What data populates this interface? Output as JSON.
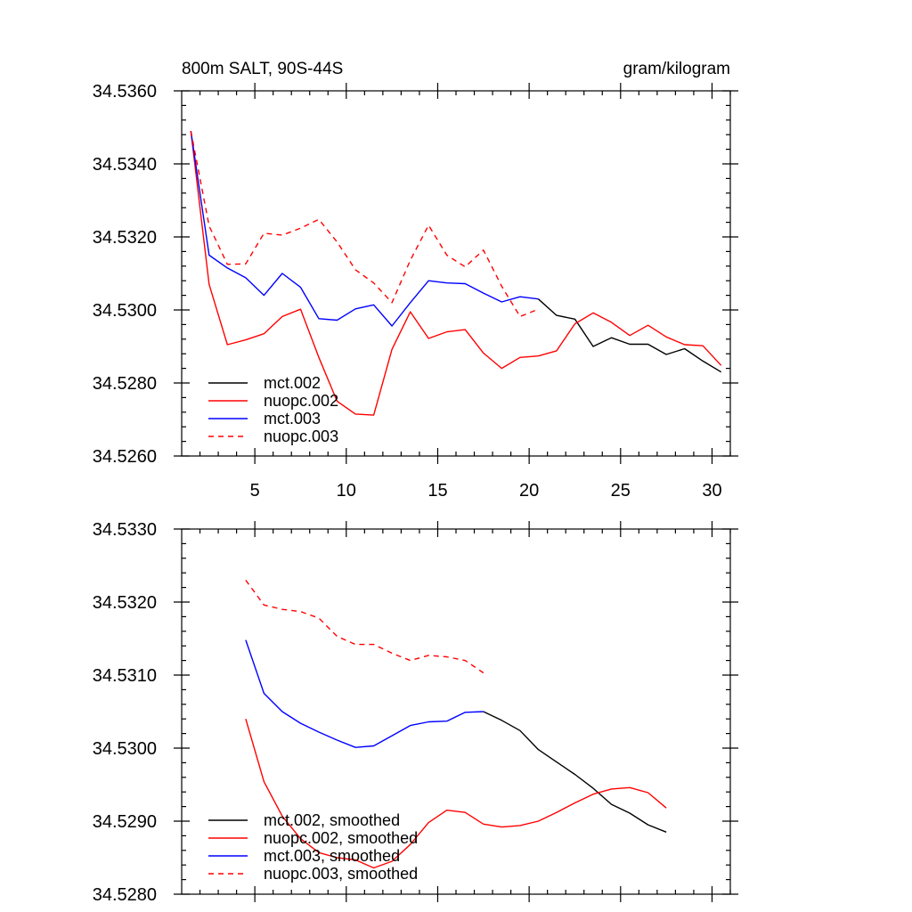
{
  "chart_data": [
    {
      "type": "line",
      "title": "800m SALT, 90S-44S",
      "units": "gram/kilogram",
      "xlim": [
        1,
        31
      ],
      "ylim": [
        34.526,
        34.536
      ],
      "xticks": [
        5,
        10,
        15,
        20,
        25,
        30
      ],
      "xtick_labels": [
        "5",
        "10",
        "15",
        "20",
        "25",
        "30"
      ],
      "yticks": [
        34.526,
        34.528,
        34.53,
        34.532,
        34.534,
        34.536
      ],
      "ytick_labels": [
        "34.5260",
        "34.5280",
        "34.5300",
        "34.5320",
        "34.5340",
        "34.5360"
      ],
      "legend_location": "lower-left",
      "series": [
        {
          "name": "mct.002",
          "color": "#000000",
          "dash": "solid",
          "x": [
            20.5,
            21.5,
            22.5,
            23.5,
            24.5,
            25.5,
            26.5,
            27.5,
            28.5,
            29.5,
            30.5
          ],
          "values": [
            34.5303,
            34.52985,
            34.52975,
            34.529,
            34.52924,
            34.52906,
            34.52906,
            34.52878,
            34.52894,
            34.5286,
            34.5283
          ]
        },
        {
          "name": "nuopc.002",
          "color": "#ff0000",
          "dash": "solid",
          "x": [
            1.5,
            2.5,
            3.5,
            4.5,
            5.5,
            6.5,
            7.5,
            8.5,
            9.5,
            10.5,
            11.5,
            12.5,
            13.5,
            14.5,
            15.5,
            16.5,
            17.5,
            18.5,
            19.5,
            20.5,
            21.5,
            22.5,
            23.5,
            24.5,
            25.5,
            26.5,
            27.5,
            28.5,
            29.5,
            30.5
          ],
          "values": [
            34.5349,
            34.5307,
            34.52905,
            34.52918,
            34.52935,
            34.52982,
            34.53002,
            34.5287,
            34.5275,
            34.52715,
            34.52712,
            34.52892,
            34.52995,
            34.52922,
            34.5294,
            34.52946,
            34.52882,
            34.5284,
            34.5287,
            34.52874,
            34.52888,
            34.52962,
            34.52992,
            34.52966,
            34.5293,
            34.52958,
            34.52926,
            34.52905,
            34.52902,
            34.52848
          ]
        },
        {
          "name": "mct.003",
          "color": "#0000ff",
          "dash": "solid",
          "x": [
            1.5,
            2.5,
            3.5,
            4.5,
            5.5,
            6.5,
            7.5,
            8.5,
            9.5,
            10.5,
            11.5,
            12.5,
            13.5,
            14.5,
            15.5,
            16.5,
            17.5,
            18.5,
            19.5,
            20.5
          ],
          "values": [
            34.5349,
            34.5315,
            34.53115,
            34.53088,
            34.5304,
            34.531,
            34.53062,
            34.52976,
            34.52972,
            34.53003,
            34.53014,
            34.52956,
            34.5302,
            34.5308,
            34.53074,
            34.53072,
            34.53046,
            34.53022,
            34.53036,
            34.5303
          ]
        },
        {
          "name": "nuopc.003",
          "color": "#ff0000",
          "dash": "dashed",
          "x": [
            1.5,
            2.5,
            3.5,
            4.5,
            5.5,
            6.5,
            7.5,
            8.5,
            9.5,
            10.5,
            11.5,
            12.5,
            13.5,
            14.5,
            15.5,
            16.5,
            17.5,
            18.5,
            19.5,
            20.5
          ],
          "values": [
            34.5349,
            34.5323,
            34.53125,
            34.53126,
            34.5321,
            34.53205,
            34.53224,
            34.53248,
            34.53186,
            34.5311,
            34.53074,
            34.5302,
            34.53136,
            34.53232,
            34.5315,
            34.53118,
            34.53164,
            34.53065,
            34.52982,
            34.53002
          ]
        }
      ]
    },
    {
      "type": "line",
      "title": "",
      "xlim": [
        1,
        31
      ],
      "ylim": [
        34.528,
        34.533
      ],
      "xticks": [
        5,
        10,
        15,
        20,
        25,
        30
      ],
      "xtick_labels": [],
      "yticks": [
        34.528,
        34.529,
        34.53,
        34.531,
        34.532,
        34.533
      ],
      "ytick_labels": [
        "34.5280",
        "34.5290",
        "34.5300",
        "34.5310",
        "34.5320",
        "34.5330"
      ],
      "legend_location": "lower-left",
      "series": [
        {
          "name": "mct.002, smoothed",
          "color": "#000000",
          "dash": "solid",
          "x": [
            17.5,
            18.5,
            19.5,
            20.5,
            21.5,
            22.5,
            23.5,
            24.5,
            25.5,
            26.5,
            27.5
          ],
          "values": [
            34.5305,
            34.53038,
            34.53024,
            34.52998,
            34.52981,
            34.52964,
            34.52945,
            34.52923,
            34.52911,
            34.52895,
            34.52885
          ]
        },
        {
          "name": "nuopc.002, smoothed",
          "color": "#ff0000",
          "dash": "solid",
          "x": [
            4.5,
            5.5,
            6.5,
            7.5,
            8.5,
            9.5,
            10.5,
            11.5,
            12.5,
            13.5,
            14.5,
            15.5,
            16.5,
            17.5,
            18.5,
            19.5,
            20.5,
            21.5,
            22.5,
            23.5,
            24.5,
            25.5,
            26.5,
            27.5
          ],
          "values": [
            34.5304,
            34.52954,
            34.52907,
            34.52876,
            34.52857,
            34.5285,
            34.52847,
            34.52836,
            34.52845,
            34.52868,
            34.52898,
            34.52915,
            34.52912,
            34.52896,
            34.52892,
            34.52894,
            34.529,
            34.52912,
            34.52925,
            34.52937,
            34.52944,
            34.52946,
            34.52939,
            34.52918
          ]
        },
        {
          "name": "mct.003, smoothed",
          "color": "#0000ff",
          "dash": "solid",
          "x": [
            4.5,
            5.5,
            6.5,
            7.5,
            8.5,
            9.5,
            10.5,
            11.5,
            12.5,
            13.5,
            14.5,
            15.5,
            16.5,
            17.5
          ],
          "values": [
            34.53148,
            34.53075,
            34.5305,
            34.53034,
            34.53022,
            34.53011,
            34.53001,
            34.53003,
            34.53017,
            34.53031,
            34.53036,
            34.53037,
            34.53049,
            34.5305
          ]
        },
        {
          "name": "nuopc.003, smoothed",
          "color": "#ff0000",
          "dash": "dashed",
          "x": [
            4.5,
            5.5,
            6.5,
            7.5,
            8.5,
            9.5,
            10.5,
            11.5,
            12.5,
            13.5,
            14.5,
            15.5,
            16.5,
            17.5
          ],
          "values": [
            34.5323,
            34.53196,
            34.5319,
            34.53187,
            34.53178,
            34.53153,
            34.53142,
            34.53142,
            34.5313,
            34.5312,
            34.53127,
            34.53125,
            34.5312,
            34.53103
          ]
        }
      ]
    }
  ]
}
